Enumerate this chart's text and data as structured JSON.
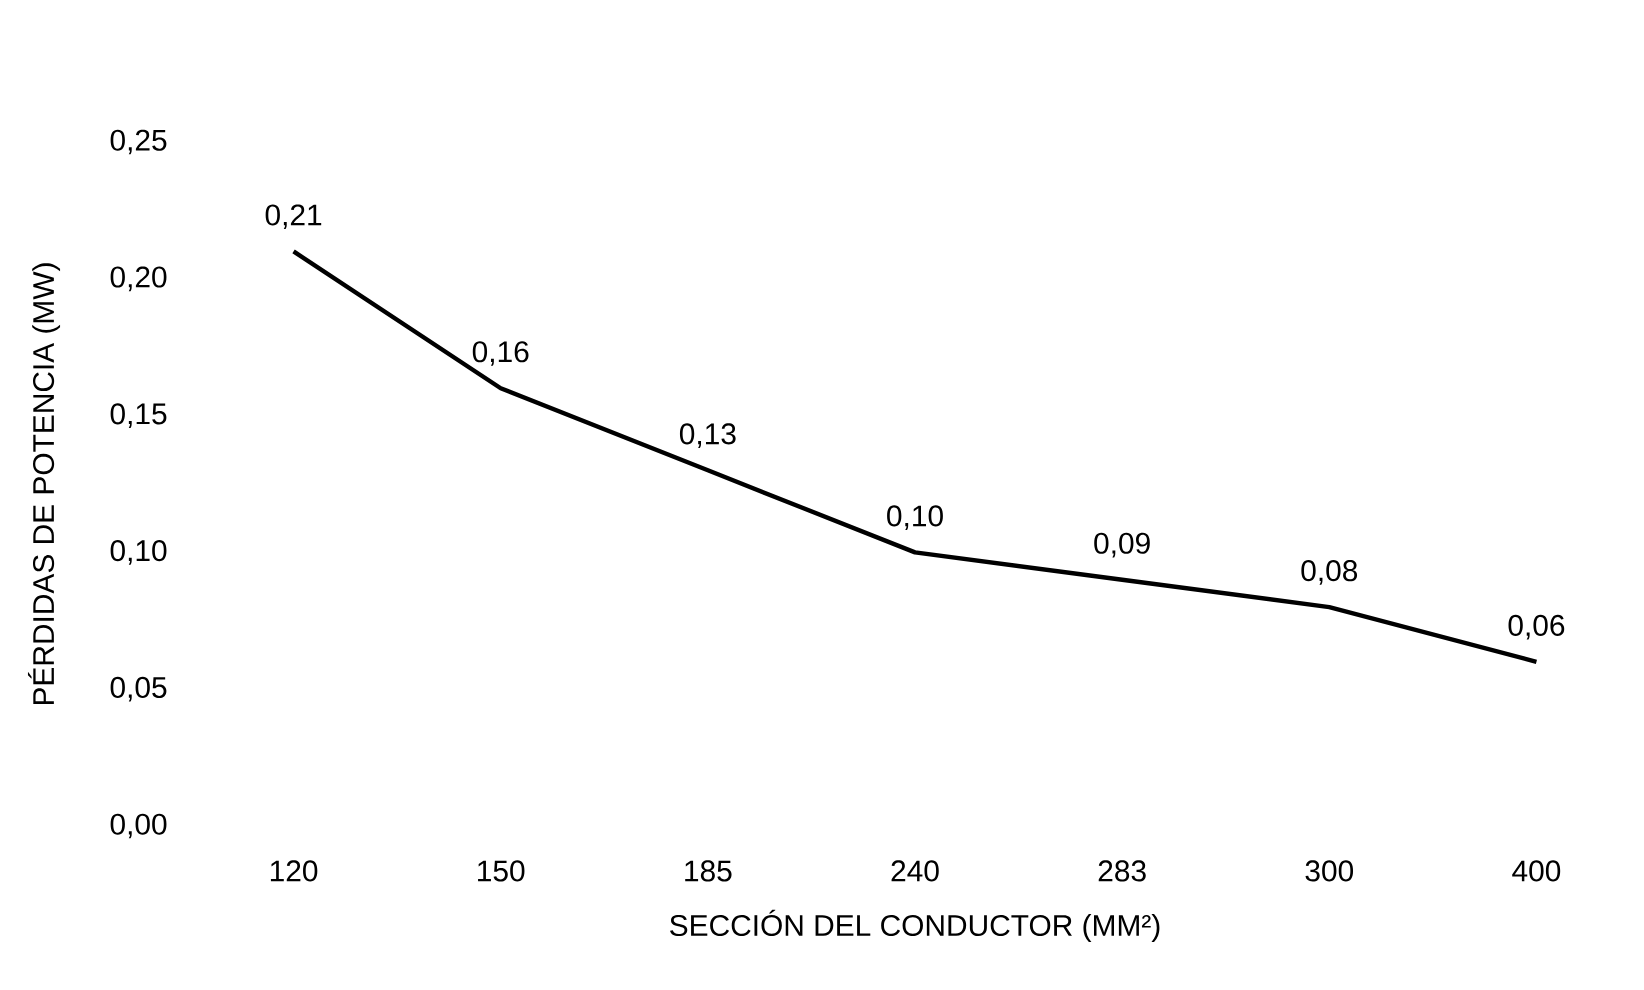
{
  "chart_data": {
    "type": "line",
    "xlabel": "SECCIÓN DEL CONDUCTOR (MM²)",
    "ylabel": "PÉRDIDAS DE POTENCIA (MW)",
    "categories": [
      "120",
      "150",
      "185",
      "240",
      "283",
      "300",
      "400"
    ],
    "values": [
      0.21,
      0.16,
      0.13,
      0.1,
      0.09,
      0.08,
      0.06
    ],
    "value_labels": [
      "0,21",
      "0,16",
      "0,13",
      "0,10",
      "0,09",
      "0,08",
      "0,06"
    ],
    "color": "#000000",
    "line_style": "solid",
    "ylim": [
      0,
      0.25
    ],
    "yticks": [
      {
        "value": 0,
        "label": "0,00"
      },
      {
        "value": 0.05,
        "label": "0,05"
      },
      {
        "value": 0.1,
        "label": "0,10"
      },
      {
        "value": 0.15,
        "label": "0,15"
      },
      {
        "value": 0.2,
        "label": "0,20"
      },
      {
        "value": 0.25,
        "label": "0,25"
      }
    ]
  }
}
